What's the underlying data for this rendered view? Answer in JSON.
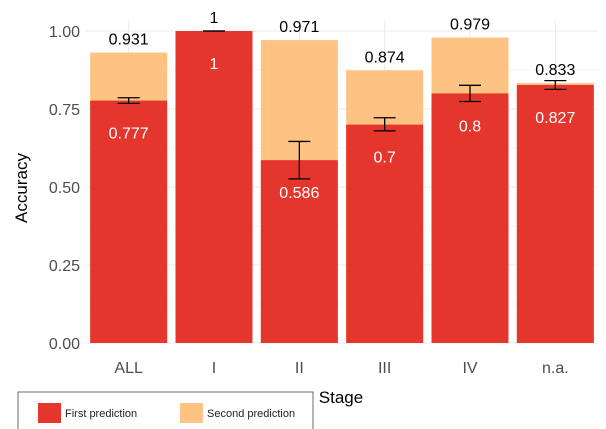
{
  "chart_data": {
    "type": "bar",
    "stacked_overlay": true,
    "xlabel": "Stage",
    "ylabel": "Accuracy",
    "ylim": [
      0,
      1
    ],
    "yticks": [
      "0.00",
      "0.25",
      "0.50",
      "0.75",
      "1.00"
    ],
    "ytick_values": [
      0,
      0.25,
      0.5,
      0.75,
      1.0
    ],
    "categories": [
      "ALL",
      "I",
      "II",
      "III",
      "IV",
      "n.a."
    ],
    "series": [
      {
        "name": "Second prediction",
        "color": "#fec382",
        "values": [
          0.931,
          1,
          0.971,
          0.874,
          0.979,
          0.833
        ],
        "labels": [
          "0.931",
          "1",
          "0.971",
          "0.874",
          "0.979",
          "0.833"
        ]
      },
      {
        "name": "First prediction",
        "color": "#e4362c",
        "values": [
          0.777,
          1,
          0.586,
          0.7,
          0.8,
          0.827
        ],
        "labels": [
          "0.777",
          "1",
          "0.586",
          "0.7",
          "0.8",
          "0.827"
        ],
        "error_bars": [
          [
            0.768,
            0.786
          ],
          [
            1.0,
            1.0
          ],
          [
            0.526,
            0.646
          ],
          [
            0.68,
            0.722
          ],
          [
            0.774,
            0.826
          ],
          [
            0.813,
            0.841
          ]
        ]
      }
    ],
    "legend": {
      "position": "bottom-left",
      "entries": [
        "First prediction",
        "Second prediction"
      ]
    },
    "grid": true
  }
}
